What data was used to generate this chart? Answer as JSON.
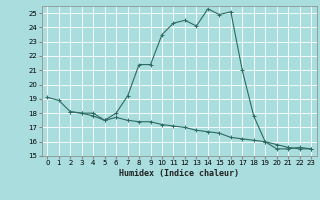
{
  "title": "",
  "xlabel": "Humidex (Indice chaleur)",
  "bg_color": "#aadddd",
  "line_color": "#2d6b62",
  "grid_color": "#ffffff",
  "xlim": [
    -0.5,
    23.5
  ],
  "ylim": [
    15,
    25.5
  ],
  "yticks": [
    15,
    16,
    17,
    18,
    19,
    20,
    21,
    22,
    23,
    24,
    25
  ],
  "xticks": [
    0,
    1,
    2,
    3,
    4,
    5,
    6,
    7,
    8,
    9,
    10,
    11,
    12,
    13,
    14,
    15,
    16,
    17,
    18,
    19,
    20,
    21,
    22,
    23
  ],
  "curve1_x": [
    0,
    1,
    2,
    3,
    4,
    5,
    6,
    7,
    8,
    9,
    10,
    11,
    12,
    13,
    14,
    15,
    16,
    17,
    18,
    19,
    20,
    21,
    22,
    23
  ],
  "curve1_y": [
    19.1,
    18.9,
    18.1,
    18.0,
    18.0,
    17.5,
    18.0,
    19.2,
    21.4,
    21.4,
    23.5,
    24.3,
    24.5,
    24.1,
    25.3,
    24.9,
    25.1,
    21.0,
    17.8,
    16.0,
    15.5,
    15.5,
    15.6,
    15.5
  ],
  "curve2_x": [
    2,
    3,
    4,
    5,
    6,
    7,
    8,
    9,
    10,
    11,
    12,
    13,
    14,
    15,
    16,
    17,
    18,
    19,
    20,
    21,
    22,
    23
  ],
  "curve2_y": [
    18.1,
    18.0,
    17.8,
    17.5,
    17.7,
    17.5,
    17.4,
    17.4,
    17.2,
    17.1,
    17.0,
    16.8,
    16.7,
    16.6,
    16.3,
    16.2,
    16.1,
    16.0,
    15.8,
    15.6,
    15.5,
    15.5
  ]
}
